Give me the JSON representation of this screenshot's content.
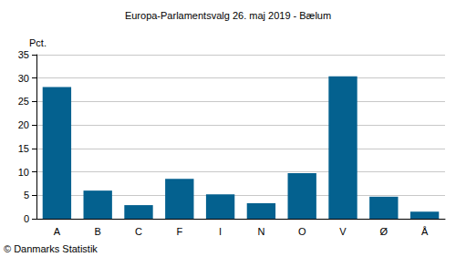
{
  "chart_data": {
    "type": "bar",
    "title": "Europa-Parlamentsvalg 26. maj 2019 - Bælum",
    "ylabel": "Pct.",
    "annotations": [
      "© Danmarks Statistik"
    ],
    "categories": [
      "A",
      "B",
      "C",
      "F",
      "I",
      "N",
      "O",
      "V",
      "Ø",
      "Å"
    ],
    "values": [
      28.1,
      6.0,
      2.9,
      8.5,
      5.2,
      3.3,
      9.7,
      30.4,
      4.7,
      1.5
    ],
    "color": "#04618f",
    "ylim": [
      0,
      35
    ],
    "yticks": [
      0,
      5,
      10,
      15,
      20,
      25,
      30,
      35
    ],
    "grid": true
  }
}
